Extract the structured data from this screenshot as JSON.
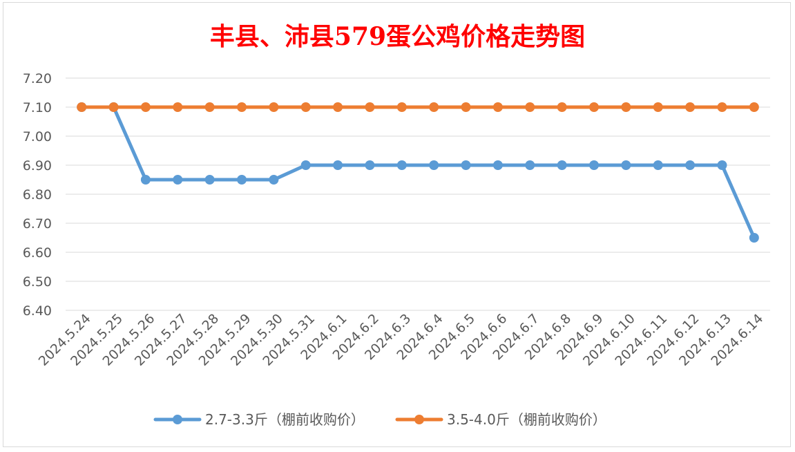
{
  "chart_data": {
    "type": "line",
    "title": "丰县、沛县579蛋公鸡价格走势图",
    "categories": [
      "2024.5.24",
      "2024.5.25",
      "2024.5.26",
      "2024.5.27",
      "2024.5.28",
      "2024.5.29",
      "2024.5.30",
      "2024.5.31",
      "2024.6.1",
      "2024.6.2",
      "2024.6.3",
      "2024.6.4",
      "2024.6.5",
      "2024.6.6",
      "2024.6.7",
      "2024.6.8",
      "2024.6.9",
      "2024.6.10",
      "2024.6.11",
      "2024.6.12",
      "2024.6.13",
      "2024.6.14"
    ],
    "series": [
      {
        "name": "2.7-3.3斤（棚前收购价）",
        "color": "#5b9bd5",
        "values": [
          7.1,
          7.1,
          6.85,
          6.85,
          6.85,
          6.85,
          6.85,
          6.9,
          6.9,
          6.9,
          6.9,
          6.9,
          6.9,
          6.9,
          6.9,
          6.9,
          6.9,
          6.9,
          6.9,
          6.9,
          6.9,
          6.65
        ]
      },
      {
        "name": "3.5-4.0斤（棚前收购价）",
        "color": "#ed7d31",
        "values": [
          7.1,
          7.1,
          7.1,
          7.1,
          7.1,
          7.1,
          7.1,
          7.1,
          7.1,
          7.1,
          7.1,
          7.1,
          7.1,
          7.1,
          7.1,
          7.1,
          7.1,
          7.1,
          7.1,
          7.1,
          7.1,
          7.1
        ]
      }
    ],
    "yticks": [
      "6.40",
      "6.50",
      "6.60",
      "6.70",
      "6.80",
      "6.90",
      "7.00",
      "7.10",
      "7.20"
    ],
    "ylim": [
      6.4,
      7.2
    ],
    "grid": true,
    "legend": "bottom"
  }
}
